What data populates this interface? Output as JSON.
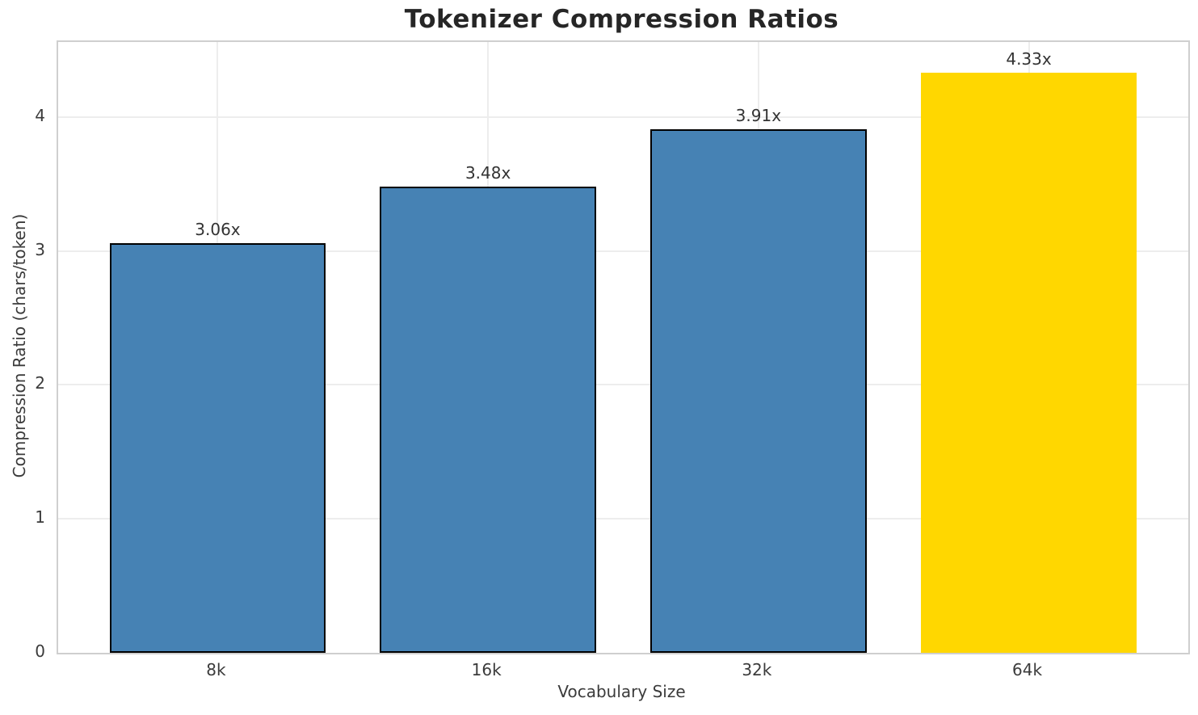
{
  "chart_data": {
    "type": "bar",
    "title": "Tokenizer Compression Ratios",
    "xlabel": "Vocabulary Size",
    "ylabel": "Compression Ratio (chars/token)",
    "categories": [
      "8k",
      "16k",
      "32k",
      "64k"
    ],
    "values": [
      3.06,
      3.48,
      3.91,
      4.33
    ],
    "bar_labels": [
      "3.06x",
      "3.48x",
      "3.91x",
      "4.33x"
    ],
    "yticks": [
      0,
      1,
      2,
      3,
      4
    ],
    "ylim": [
      0,
      4.56
    ],
    "xlim": [
      -0.59,
      3.59
    ],
    "bar_width_units": 0.8,
    "grid": true,
    "legend_position": "none",
    "highlight_index": 3,
    "bar_has_edge": [
      true,
      true,
      true,
      false
    ],
    "colors": {
      "bar": "#4682B4",
      "highlight": "#FFD700",
      "bar_edge": "#000000",
      "grid": "#ededed",
      "spine": "#cfcfcf",
      "title_text": "#262626",
      "tick_text": "#3b3b3b",
      "value_label_text": "#333333",
      "background": "#ffffff"
    }
  }
}
